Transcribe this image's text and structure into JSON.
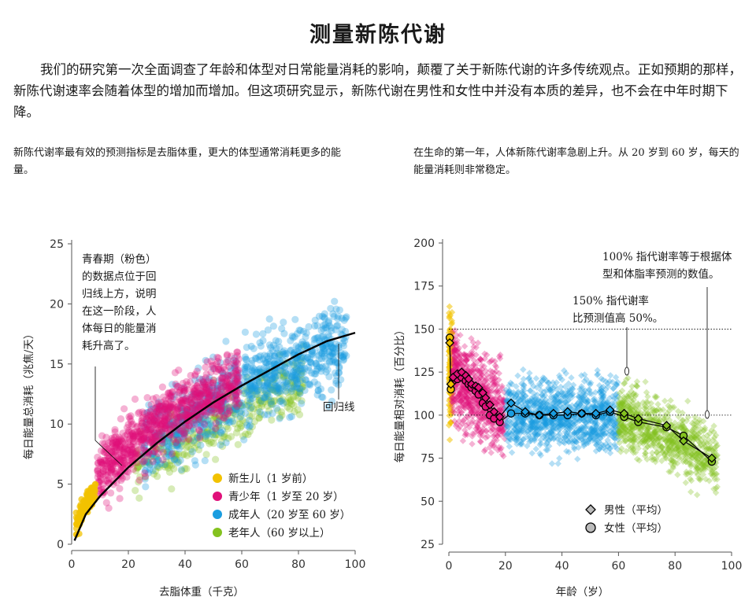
{
  "title": "测量新陈代谢",
  "intro": "我们的研究第一次全面调查了年龄和体型对日常能量消耗的影响，颠覆了关于新陈代谢的许多传统观点。正如预期的那样，新陈代谢速率会随着体型的增加而增加。但这项研究显示，新陈代谢在男性和女性中并没有本质的差异，也不会在中年时期下降。",
  "left_caption": "新陈代谢率最有效的预测指标是去脂体重，更大的体型通常消耗更多的能量。",
  "right_caption": "在生命的第一年，人体新陈代谢率急剧上升。从 20 岁到 60 岁，每天的能量消耗则非常稳定。",
  "colors": {
    "newborn": "#f2c200",
    "teen": "#e0107a",
    "adult": "#1a9de0",
    "senior": "#84c21f"
  },
  "chart_data": [
    {
      "type": "scatter",
      "xlabel": "去脂体重（千克）",
      "ylabel": "每日能量总消耗（兆焦/天）",
      "xlim": [
        0,
        100
      ],
      "ylim": [
        0,
        25
      ],
      "xticks": [
        0,
        20,
        40,
        60,
        80,
        100
      ],
      "yticks": [
        0,
        5,
        10,
        15,
        20,
        25
      ],
      "groups": [
        {
          "name": "新生儿（1 岁前）",
          "color_key": "newborn",
          "x_range": [
            1,
            9
          ],
          "n": 110
        },
        {
          "name": "青少年（1 岁至 20 岁）",
          "color_key": "teen",
          "x_range": [
            9,
            62
          ],
          "n": 850
        },
        {
          "name": "成年人（20 岁至 60 岁）",
          "color_key": "adult",
          "x_range": [
            24,
            100
          ],
          "n": 850
        },
        {
          "name": "老年人（60 岁以上）",
          "color_key": "senior",
          "x_range": [
            22,
            85
          ],
          "n": 400
        }
      ],
      "regression": {
        "label": "回归线",
        "x": [
          1,
          5,
          10,
          20,
          30,
          40,
          50,
          60,
          70,
          80,
          90,
          100
        ],
        "y": [
          0.3,
          2.5,
          4.0,
          6.4,
          8.4,
          10.2,
          11.8,
          13.2,
          14.5,
          15.8,
          16.9,
          17.6
        ]
      },
      "annotation": [
        "青春期（粉色）",
        "的数据点位于回",
        "归线上方，说明",
        "在这一阶段，人",
        "体每日的能量消",
        "耗升高了。"
      ]
    },
    {
      "type": "scatter",
      "xlabel": "年龄（岁）",
      "ylabel": "每日能量相对消耗（百分比）",
      "xlim": [
        0,
        100
      ],
      "ylim": [
        25,
        200
      ],
      "xticks": [
        0,
        20,
        40,
        60,
        80,
        100
      ],
      "yticks": [
        25,
        50,
        75,
        100,
        125,
        150,
        175,
        200
      ],
      "reference_lines": [
        100,
        150
      ],
      "groups": [
        {
          "name": "新生儿",
          "color_key": "newborn",
          "x_range": [
            0,
            1
          ],
          "n": 130
        },
        {
          "name": "青少年",
          "color_key": "teen",
          "x_range": [
            1,
            20
          ],
          "n": 650
        },
        {
          "name": "成年人",
          "color_key": "adult",
          "x_range": [
            20,
            60
          ],
          "n": 1100
        },
        {
          "name": "老年人",
          "color_key": "senior",
          "x_range": [
            60,
            95
          ],
          "n": 800
        }
      ],
      "series": [
        {
          "name": "男性（平均）",
          "marker": "diamond",
          "x": [
            0.3,
            0.7,
            1.5,
            3,
            4.5,
            6,
            7,
            8,
            9.5,
            10.5,
            12,
            13,
            14.5,
            16,
            18,
            22,
            27,
            32,
            37,
            42,
            47,
            52,
            57,
            62,
            67,
            77,
            83,
            93
          ],
          "y": [
            142,
            118,
            122,
            124,
            125,
            123,
            121,
            118,
            117,
            116,
            113,
            110,
            106,
            102,
            99,
            107,
            102,
            100,
            101,
            102,
            101,
            101,
            103,
            101,
            98,
            94,
            85,
            75
          ]
        },
        {
          "name": "女性（平均）",
          "marker": "circle",
          "x": [
            0.3,
            0.7,
            1.5,
            3,
            4.5,
            6,
            7,
            8,
            9.5,
            10.5,
            12,
            13,
            14.5,
            16,
            18,
            22,
            27,
            32,
            37,
            42,
            47,
            52,
            57,
            62,
            67,
            77,
            83,
            93
          ],
          "y": [
            145,
            115,
            120,
            121,
            122,
            120,
            118,
            116,
            114,
            112,
            107,
            105,
            100,
            98,
            96,
            101,
            101,
            100,
            100,
            100,
            101,
            100,
            102,
            99,
            96,
            93,
            88,
            73
          ]
        }
      ],
      "annotations": [
        {
          "lines": [
            "100% 指代谢率等于根据体",
            "型和体脂率预测的数值。"
          ]
        },
        {
          "lines": [
            "150% 指代谢率",
            "比预测值高 50%。"
          ]
        }
      ]
    }
  ]
}
